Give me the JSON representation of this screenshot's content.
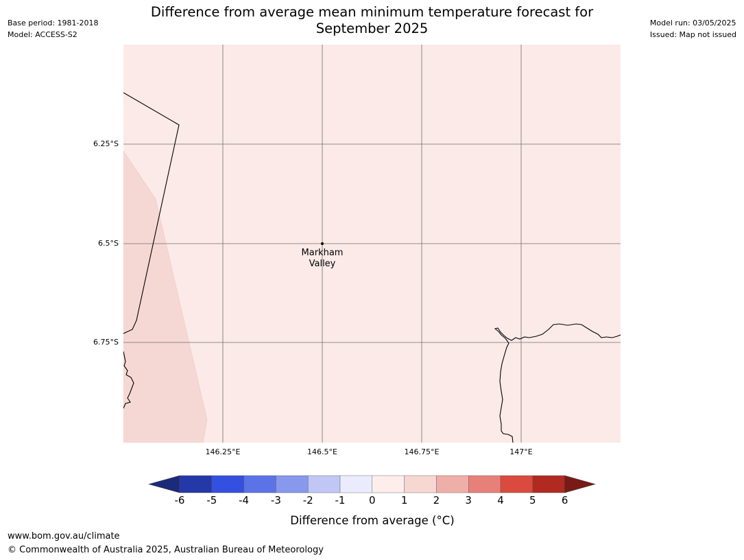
{
  "header": {
    "base_period": "Base period: 1981-2018",
    "model": "Model: ACCESS-S2",
    "model_run": "Model run: 03/05/2025",
    "issued": "Issued: Map not issued",
    "title_line1": "Difference from average mean minimum temperature forecast for",
    "title_line2": "September 2025"
  },
  "map": {
    "background_color": "#fbeae8",
    "warm_region_color": "#f5d8d4",
    "gridline_color": "#6e6e6e",
    "coastline_color": "#000000",
    "lat_labels": [
      "6.25°S",
      "6.5°S",
      "6.75°S"
    ],
    "lon_labels": [
      "146.25°E",
      "146.5°E",
      "146.75°E",
      "147°E"
    ],
    "place": {
      "name_line1": "Markham",
      "name_line2": "Valley"
    }
  },
  "colorbar": {
    "label": "Difference from average (°C)",
    "ticks": [
      "-6",
      "-5",
      "-4",
      "-3",
      "-2",
      "-1",
      "0",
      "1",
      "2",
      "3",
      "4",
      "5",
      "6"
    ],
    "low_extend_color": "#1b2a7a",
    "high_extend_color": "#7a1a17",
    "colors": [
      "#2438a8",
      "#3350e0",
      "#5b73e6",
      "#8898ec",
      "#c0c7f5",
      "#eaecfd",
      "#fdeeeb",
      "#f6d7d2",
      "#efaea8",
      "#e8807a",
      "#da4a3e",
      "#b02a22"
    ]
  },
  "footer": {
    "url": "www.bom.gov.au/climate",
    "copyright": "© Commonwealth of Australia 2025, Australian Bureau of Meteorology"
  }
}
